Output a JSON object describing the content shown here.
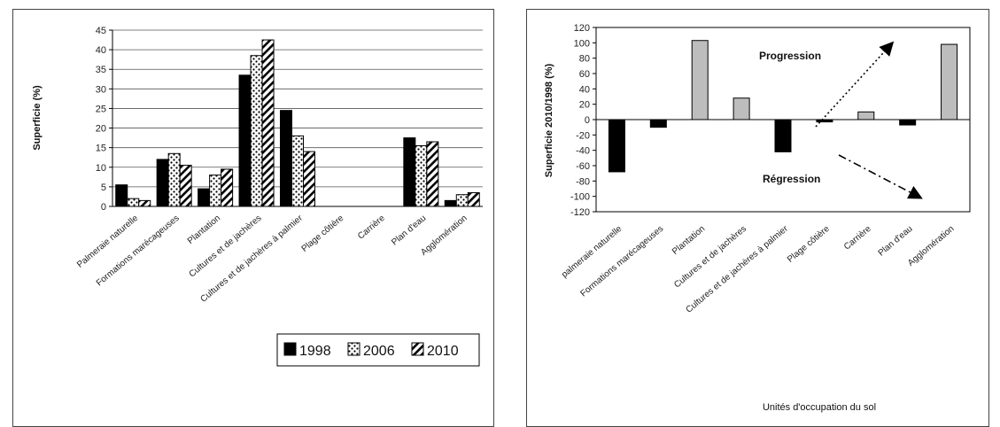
{
  "chart_data": [
    {
      "type": "bar",
      "ylabel": "Superficie (%)",
      "ylim": [
        0,
        45
      ],
      "yticks": [
        0,
        5,
        10,
        15,
        20,
        25,
        30,
        35,
        40,
        45
      ],
      "categories": [
        "Palmeraie naturelle",
        "Formations marécageuses",
        "Plantation",
        "Cultures et de jachères",
        "Cultures et de jachères à palmier",
        "Plage côtière",
        "Carrière",
        "Plan d'eau",
        "Agglomération"
      ],
      "series": [
        {
          "name": "1998",
          "values": [
            5.5,
            12,
            4.5,
            33.5,
            24.5,
            0,
            0,
            17.5,
            1.5
          ],
          "fill": "#000000"
        },
        {
          "name": "2006",
          "values": [
            2,
            13.5,
            8,
            38.5,
            18,
            0,
            0,
            15.5,
            3
          ],
          "fill": "dots"
        },
        {
          "name": "2010",
          "values": [
            1.5,
            10.5,
            9.5,
            42.5,
            14,
            0,
            0,
            16.5,
            3.5
          ],
          "fill": "stripes"
        }
      ],
      "grid": true,
      "legend_position": "bottom-right"
    },
    {
      "type": "bar",
      "ylabel": "Superficie 2010/1998 (%)",
      "xlabel": "Unités d'occupation du sol",
      "ylim": [
        -120,
        120
      ],
      "yticks": [
        120,
        100,
        80,
        60,
        40,
        20,
        0,
        -20,
        -40,
        -60,
        -80,
        -100,
        -120
      ],
      "categories": [
        "palmeraie naturelle",
        "Formations marécageuses",
        "Plantation",
        "Cultures et de jachères",
        "Cultures et de jachères à palmier",
        "Plage côtière",
        "Carrière",
        "Plan d'eau",
        "Agglomération"
      ],
      "values": [
        -68,
        -10,
        103,
        28,
        -42,
        -3,
        10,
        -7,
        98
      ],
      "colors": {
        "positive": "#bdbdbd",
        "negative": "#000000"
      },
      "annotations": [
        "Progression",
        "Régression"
      ]
    }
  ]
}
